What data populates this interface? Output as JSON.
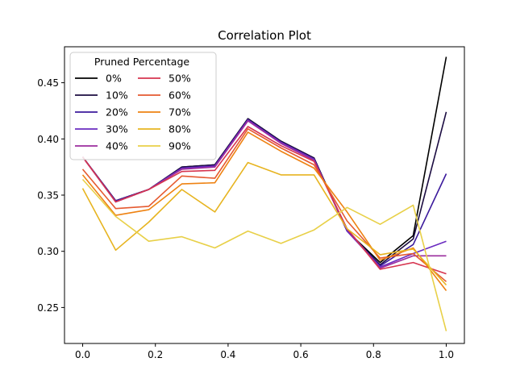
{
  "chart_data": {
    "type": "line",
    "title": "Correlation Plot",
    "xlabel": "",
    "ylabel": "",
    "xlim": [
      -0.05,
      1.05
    ],
    "ylim": [
      0.218,
      0.482
    ],
    "x_ticks": [
      0.0,
      0.2,
      0.4,
      0.6,
      0.8,
      1.0
    ],
    "x_tick_labels": [
      "0.0",
      "0.2",
      "0.4",
      "0.6",
      "0.8",
      "1.0"
    ],
    "y_ticks": [
      0.25,
      0.3,
      0.35,
      0.4,
      0.45
    ],
    "y_tick_labels": [
      "0.25",
      "0.30",
      "0.35",
      "0.40",
      "0.45"
    ],
    "grid": false,
    "legend": {
      "title": "Pruned Percentage",
      "placement": "upper-left",
      "columns": 2
    },
    "x": [
      0.0,
      0.0909,
      0.1818,
      0.2727,
      0.3636,
      0.4545,
      0.5455,
      0.6364,
      0.7273,
      0.8182,
      0.9091,
      1.0
    ],
    "series": [
      {
        "name": "0%",
        "color": "#000000",
        "values": [
          0.384,
          0.345,
          0.355,
          0.375,
          0.377,
          0.418,
          0.398,
          0.383,
          0.318,
          0.29,
          0.314,
          0.473
        ]
      },
      {
        "name": "10%",
        "color": "#1b0c41",
        "values": [
          0.384,
          0.345,
          0.355,
          0.375,
          0.377,
          0.418,
          0.398,
          0.383,
          0.318,
          0.288,
          0.311,
          0.424
        ]
      },
      {
        "name": "20%",
        "color": "#3b1a9c",
        "values": [
          0.384,
          0.345,
          0.355,
          0.374,
          0.376,
          0.417,
          0.397,
          0.382,
          0.318,
          0.287,
          0.306,
          0.369
        ]
      },
      {
        "name": "30%",
        "color": "#6a2bc0",
        "values": [
          0.384,
          0.344,
          0.355,
          0.374,
          0.376,
          0.417,
          0.397,
          0.382,
          0.318,
          0.286,
          0.298,
          0.309
        ]
      },
      {
        "name": "40%",
        "color": "#9b2d9e",
        "values": [
          0.384,
          0.344,
          0.355,
          0.373,
          0.375,
          0.416,
          0.396,
          0.381,
          0.32,
          0.285,
          0.296,
          0.296
        ]
      },
      {
        "name": "50%",
        "color": "#d6344f",
        "values": [
          0.384,
          0.344,
          0.355,
          0.371,
          0.372,
          0.411,
          0.394,
          0.38,
          0.32,
          0.284,
          0.29,
          0.28
        ]
      },
      {
        "name": "60%",
        "color": "#e55a30",
        "values": [
          0.373,
          0.338,
          0.34,
          0.367,
          0.365,
          0.409,
          0.392,
          0.377,
          0.327,
          0.294,
          0.298,
          0.273
        ]
      },
      {
        "name": "70%",
        "color": "#ee8212",
        "values": [
          0.368,
          0.332,
          0.337,
          0.36,
          0.361,
          0.406,
          0.389,
          0.374,
          0.335,
          0.292,
          0.303,
          0.265
        ]
      },
      {
        "name": "80%",
        "color": "#e7b420",
        "values": [
          0.356,
          0.301,
          0.326,
          0.355,
          0.335,
          0.379,
          0.368,
          0.368,
          0.32,
          0.297,
          0.302,
          0.27
        ]
      },
      {
        "name": "90%",
        "color": "#e8d048",
        "values": [
          0.364,
          0.331,
          0.309,
          0.313,
          0.303,
          0.318,
          0.307,
          0.319,
          0.339,
          0.324,
          0.341,
          0.229
        ]
      }
    ]
  }
}
